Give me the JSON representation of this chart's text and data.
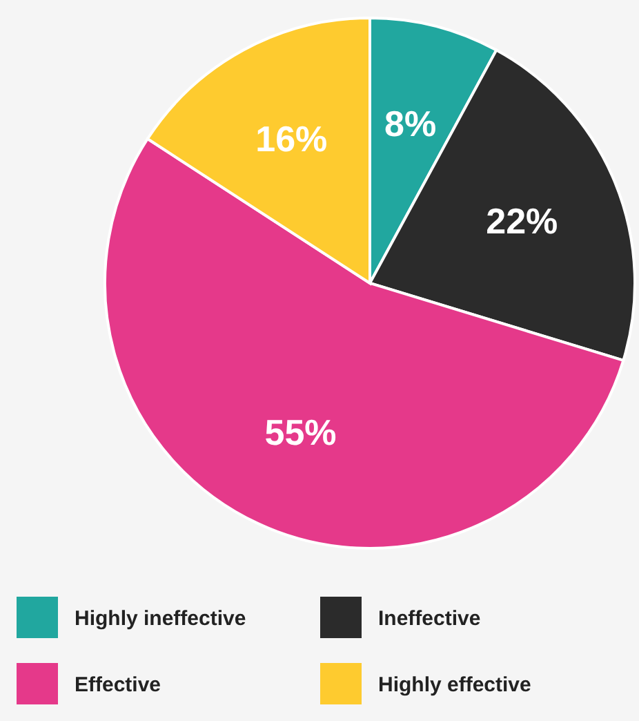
{
  "chart_data": {
    "type": "pie",
    "categories": [
      "Highly ineffective",
      "Ineffective",
      "Effective",
      "Highly effective"
    ],
    "values": [
      8,
      22,
      55,
      16
    ],
    "colors": [
      "#21a79f",
      "#2b2b2b",
      "#e5398a",
      "#fecb2f"
    ],
    "value_labels": [
      "8%",
      "22%",
      "55%",
      "16%"
    ],
    "legend": "bottom"
  }
}
